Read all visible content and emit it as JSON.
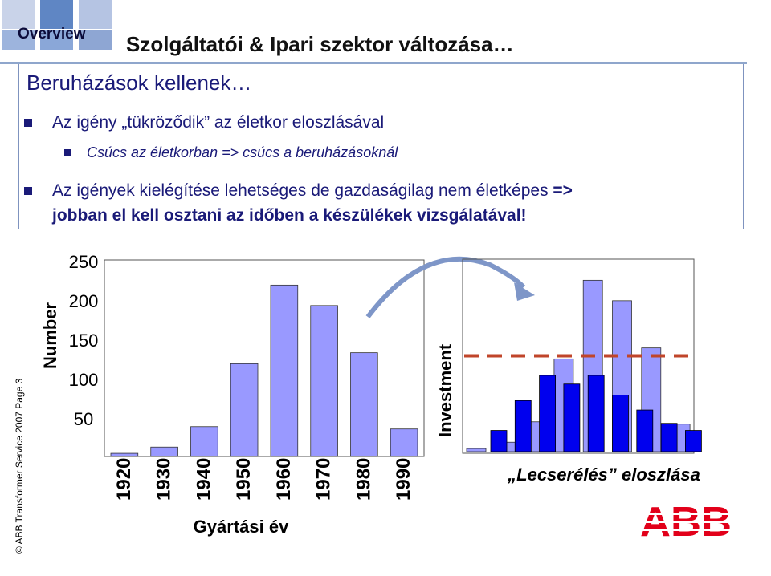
{
  "header": {
    "tab_label": "Overview",
    "title": "Szolgáltatói & Ipari szektor változása…"
  },
  "content": {
    "subtitle": "Beruházások kellenek…",
    "bullet1": "Az igény „tükröződik” az életkor eloszlásával",
    "sub_bullet1": "Csúcs az életkorban  => csúcs a beruházásoknál",
    "bullet2_normal": "Az igények kielégítése lehetséges de gazdaságilag nem életképes ",
    "bullet2_arrow": "=>",
    "bullet2_line2": "jobban el kell osztani az időben a készülékek vizsgálatával!"
  },
  "footer": {
    "copyright": "© ABB Transformer Service 2007 Page 3",
    "logo_text": "ABB"
  },
  "colors": {
    "light_bar": "#9999ff",
    "dark_bar": "#0000ee",
    "dash": "#c0452a",
    "arrow": "#7e96c8",
    "text_blue": "#1a1a78"
  },
  "chart_data": [
    {
      "type": "bar",
      "ylabel": "Number",
      "xlabel": "Gyártási év",
      "yticks": [
        250,
        200,
        150,
        100,
        50
      ],
      "ylim": [
        0,
        250
      ],
      "categories": [
        "1920",
        "1930",
        "1940",
        "1950",
        "1960",
        "1970",
        "1980",
        "1990"
      ],
      "values": [
        4,
        12,
        38,
        118,
        218,
        192,
        132,
        35
      ]
    },
    {
      "type": "bar",
      "ylabel": "Investment",
      "caption": "„Lecserélés” eloszlása",
      "series": [
        {
          "values": [
            4,
            12,
            38,
            118,
            218,
            192,
            132,
            35
          ]
        },
        {
          "values": [
            27,
            65,
            97,
            86,
            97,
            72,
            53,
            36,
            27
          ]
        }
      ],
      "dashed_line_value": 122
    }
  ]
}
